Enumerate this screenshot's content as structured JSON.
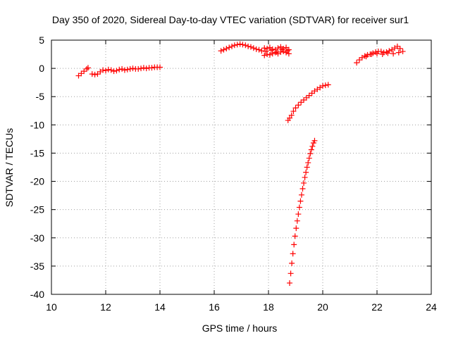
{
  "chart_data": {
    "type": "scatter",
    "title": "Day 350 of 2020, Sidereal Day-to-day VTEC variation (SDTVAR) for receiver sur1",
    "xlabel": "GPS time / hours",
    "ylabel": "SDTVAR / TECUs",
    "xlim": [
      10,
      24
    ],
    "ylim": [
      -40,
      5
    ],
    "xticks": [
      10,
      12,
      14,
      16,
      18,
      20,
      22,
      24
    ],
    "yticks": [
      5,
      0,
      -5,
      -10,
      -15,
      -20,
      -25,
      -30,
      -35,
      -40
    ],
    "grid": true,
    "legend": "none",
    "marker": "plus",
    "color": "#ff0000",
    "series": [
      {
        "x": [
          11.0,
          11.1,
          11.2,
          11.3,
          11.35
        ],
        "y": [
          -1.3,
          -0.9,
          -0.5,
          -0.1,
          0.1
        ]
      },
      {
        "x": [
          11.5,
          11.6,
          11.7,
          11.8,
          11.9,
          12.0,
          12.1,
          12.2,
          12.3,
          12.4,
          12.5,
          12.6,
          12.7,
          12.8,
          12.9,
          13.0,
          13.1,
          13.2,
          13.3,
          13.4,
          13.5,
          13.6,
          13.7,
          13.8,
          13.9,
          14.0
        ],
        "y": [
          -1.0,
          -1.1,
          -1.0,
          -0.6,
          -0.3,
          -0.4,
          -0.2,
          -0.3,
          -0.5,
          -0.4,
          -0.2,
          -0.1,
          -0.3,
          -0.2,
          -0.1,
          0.0,
          -0.1,
          -0.1,
          0.0,
          0.1,
          0.0,
          0.1,
          0.1,
          0.2,
          0.2,
          0.2
        ]
      },
      {
        "x": [
          16.25,
          16.35,
          16.45,
          16.55,
          16.65,
          16.75,
          16.85,
          16.95,
          17.05,
          17.15,
          17.25,
          17.35,
          17.45,
          17.55,
          17.65,
          17.75
        ],
        "y": [
          3.1,
          3.3,
          3.5,
          3.7,
          3.9,
          4.1,
          4.2,
          4.3,
          4.2,
          4.1,
          3.9,
          3.8,
          3.6,
          3.4,
          3.3,
          3.1
        ]
      },
      {
        "x": [
          17.85,
          17.95,
          18.05,
          18.15,
          18.25,
          18.35,
          18.45,
          18.55,
          18.65,
          18.75,
          17.85,
          17.95,
          18.05,
          18.15,
          18.25,
          18.35,
          18.45,
          18.55,
          18.65,
          18.75,
          17.9,
          18.1,
          18.3,
          18.5,
          18.7
        ],
        "y": [
          3.6,
          3.5,
          3.7,
          3.4,
          3.3,
          3.6,
          3.8,
          3.5,
          3.7,
          3.3,
          2.3,
          2.5,
          2.4,
          2.6,
          2.8,
          2.6,
          2.9,
          3.0,
          2.8,
          2.6,
          3.0,
          3.2,
          2.9,
          3.3,
          3.1
        ]
      },
      {
        "x": [
          18.72,
          18.78,
          18.85,
          18.92,
          19.0,
          19.1,
          19.2,
          19.3,
          19.4,
          19.5,
          19.6,
          19.7,
          19.8,
          19.9,
          20.0,
          20.1,
          20.2
        ],
        "y": [
          -9.2,
          -8.8,
          -8.3,
          -7.6,
          -7.0,
          -6.5,
          -6.0,
          -5.6,
          -5.2,
          -4.8,
          -4.4,
          -4.0,
          -3.7,
          -3.4,
          -3.1,
          -3.0,
          -2.9
        ]
      },
      {
        "x": [
          18.78,
          18.82,
          18.86,
          18.9,
          18.94,
          18.98,
          19.02,
          19.06,
          19.1,
          19.14,
          19.18,
          19.22,
          19.26,
          19.3,
          19.34,
          19.38,
          19.42,
          19.46,
          19.5,
          19.54,
          19.58,
          19.62,
          19.66,
          19.7
        ],
        "y": [
          -38.0,
          -36.3,
          -34.5,
          -32.8,
          -31.2,
          -29.7,
          -28.3,
          -27.0,
          -25.8,
          -24.6,
          -23.5,
          -22.4,
          -21.3,
          -20.3,
          -19.3,
          -18.4,
          -17.5,
          -16.7,
          -15.9,
          -15.1,
          -14.4,
          -13.8,
          -13.2,
          -12.8
        ]
      },
      {
        "x": [
          21.25,
          21.35,
          21.45,
          21.55,
          21.65,
          21.75,
          21.85,
          21.95,
          22.05,
          22.15,
          22.25,
          22.35,
          22.45,
          22.55,
          22.65,
          22.75,
          22.85,
          22.95,
          21.6,
          21.8,
          22.0,
          22.2,
          22.4,
          22.6,
          22.8
        ],
        "y": [
          1.0,
          1.5,
          1.9,
          2.2,
          2.4,
          2.5,
          2.7,
          2.9,
          3.0,
          3.0,
          2.8,
          2.9,
          3.1,
          3.3,
          3.6,
          3.9,
          3.5,
          3.0,
          2.1,
          2.5,
          2.6,
          2.5,
          2.7,
          2.6,
          2.8
        ]
      }
    ]
  }
}
